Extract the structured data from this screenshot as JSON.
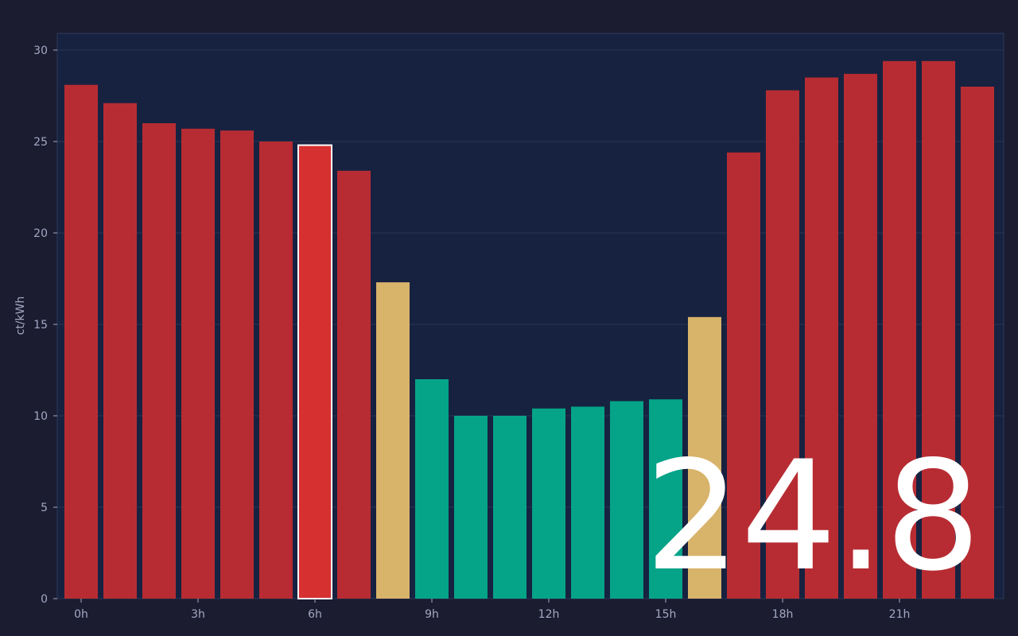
{
  "chart_data": {
    "type": "bar",
    "y_label": "ct/kWh",
    "categories": [
      "0h",
      null,
      null,
      "3h",
      null,
      null,
      "6h",
      null,
      null,
      "9h",
      null,
      null,
      "12h",
      null,
      null,
      "15h",
      null,
      null,
      "18h",
      null,
      null,
      "21h",
      null,
      null
    ],
    "values": [
      28.1,
      27.1,
      26.0,
      25.7,
      25.6,
      25.0,
      24.8,
      23.4,
      17.3,
      12.0,
      10.0,
      10.0,
      10.4,
      10.5,
      10.8,
      10.9,
      15.4,
      24.4,
      27.8,
      28.5,
      28.7,
      29.4,
      29.4,
      28.0
    ],
    "colors": [
      "#b72c33",
      "#b72c33",
      "#b72c33",
      "#b72c33",
      "#b72c33",
      "#b72c33",
      "#d63031",
      "#b72c33",
      "#d8b36a",
      "#05a388",
      "#05a388",
      "#05a388",
      "#05a388",
      "#05a388",
      "#05a388",
      "#05a388",
      "#d8b36a",
      "#b72c33",
      "#b72c33",
      "#b72c33",
      "#b72c33",
      "#b72c33",
      "#b72c33",
      "#b72c33"
    ],
    "highlight": 6,
    "ylim": [
      0,
      30
    ],
    "yticks": [
      0,
      5,
      10,
      15,
      20,
      25,
      30
    ],
    "grid": true
  }
}
